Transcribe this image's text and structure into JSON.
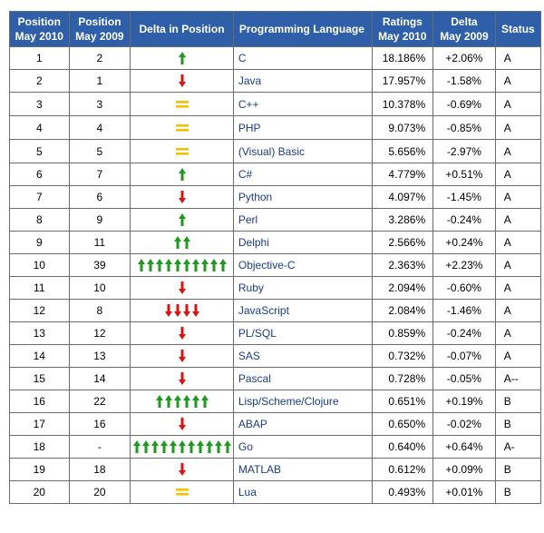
{
  "headers": {
    "pos_2010": [
      "Position",
      "May 2010"
    ],
    "pos_2009": [
      "Position",
      "May 2009"
    ],
    "delta_pos": "Delta in Position",
    "language": "Programming Language",
    "ratings": [
      "Ratings",
      "May 2010"
    ],
    "delta_2009": [
      "Delta",
      "May 2009"
    ],
    "status": "Status"
  },
  "colors": {
    "header_bg": "#2e5fa8",
    "up": "#1e9a1e",
    "down": "#e01010",
    "equal": "#f2c200",
    "link": "#1a3a8a"
  },
  "rows": [
    {
      "pos2010": "1",
      "pos2009": "2",
      "trend": "up",
      "count": 1,
      "lang": "C",
      "rating": "18.186%",
      "delta": "+2.06%",
      "status": "A"
    },
    {
      "pos2010": "2",
      "pos2009": "1",
      "trend": "down",
      "count": 1,
      "lang": "Java",
      "rating": "17.957%",
      "delta": "-1.58%",
      "status": "A"
    },
    {
      "pos2010": "3",
      "pos2009": "3",
      "trend": "equal",
      "count": 1,
      "lang": "C++",
      "rating": "10.378%",
      "delta": "-0.69%",
      "status": "A"
    },
    {
      "pos2010": "4",
      "pos2009": "4",
      "trend": "equal",
      "count": 1,
      "lang": "PHP",
      "rating": "9.073%",
      "delta": "-0.85%",
      "status": "A"
    },
    {
      "pos2010": "5",
      "pos2009": "5",
      "trend": "equal",
      "count": 1,
      "lang": "(Visual) Basic",
      "rating": "5.656%",
      "delta": "-2.97%",
      "status": "A"
    },
    {
      "pos2010": "6",
      "pos2009": "7",
      "trend": "up",
      "count": 1,
      "lang": "C#",
      "rating": "4.779%",
      "delta": "+0.51%",
      "status": "A"
    },
    {
      "pos2010": "7",
      "pos2009": "6",
      "trend": "down",
      "count": 1,
      "lang": "Python",
      "rating": "4.097%",
      "delta": "-1.45%",
      "status": "A"
    },
    {
      "pos2010": "8",
      "pos2009": "9",
      "trend": "up",
      "count": 1,
      "lang": "Perl",
      "rating": "3.286%",
      "delta": "-0.24%",
      "status": "A"
    },
    {
      "pos2010": "9",
      "pos2009": "11",
      "trend": "up",
      "count": 2,
      "lang": "Delphi",
      "rating": "2.566%",
      "delta": "+0.24%",
      "status": "A"
    },
    {
      "pos2010": "10",
      "pos2009": "39",
      "trend": "up",
      "count": 10,
      "lang": "Objective-C",
      "rating": "2.363%",
      "delta": "+2.23%",
      "status": "A"
    },
    {
      "pos2010": "11",
      "pos2009": "10",
      "trend": "down",
      "count": 1,
      "lang": "Ruby",
      "rating": "2.094%",
      "delta": "-0.60%",
      "status": "A"
    },
    {
      "pos2010": "12",
      "pos2009": "8",
      "trend": "down",
      "count": 4,
      "lang": "JavaScript",
      "rating": "2.084%",
      "delta": "-1.46%",
      "status": "A"
    },
    {
      "pos2010": "13",
      "pos2009": "12",
      "trend": "down",
      "count": 1,
      "lang": "PL/SQL",
      "rating": "0.859%",
      "delta": "-0.24%",
      "status": "A"
    },
    {
      "pos2010": "14",
      "pos2009": "13",
      "trend": "down",
      "count": 1,
      "lang": "SAS",
      "rating": "0.732%",
      "delta": "-0.07%",
      "status": "A"
    },
    {
      "pos2010": "15",
      "pos2009": "14",
      "trend": "down",
      "count": 1,
      "lang": "Pascal",
      "rating": "0.728%",
      "delta": "-0.05%",
      "status": "A--"
    },
    {
      "pos2010": "16",
      "pos2009": "22",
      "trend": "up",
      "count": 6,
      "lang": "Lisp/Scheme/Clojure",
      "rating": "0.651%",
      "delta": "+0.19%",
      "status": "B"
    },
    {
      "pos2010": "17",
      "pos2009": "16",
      "trend": "down",
      "count": 1,
      "lang": "ABAP",
      "rating": "0.650%",
      "delta": "-0.02%",
      "status": "B"
    },
    {
      "pos2010": "18",
      "pos2009": "-",
      "trend": "up",
      "count": 11,
      "lang": "Go",
      "rating": "0.640%",
      "delta": "+0.64%",
      "status": "A-"
    },
    {
      "pos2010": "19",
      "pos2009": "18",
      "trend": "down",
      "count": 1,
      "lang": "MATLAB",
      "rating": "0.612%",
      "delta": "+0.09%",
      "status": "B"
    },
    {
      "pos2010": "20",
      "pos2009": "20",
      "trend": "equal",
      "count": 1,
      "lang": "Lua",
      "rating": "0.493%",
      "delta": "+0.01%",
      "status": "B"
    }
  ]
}
